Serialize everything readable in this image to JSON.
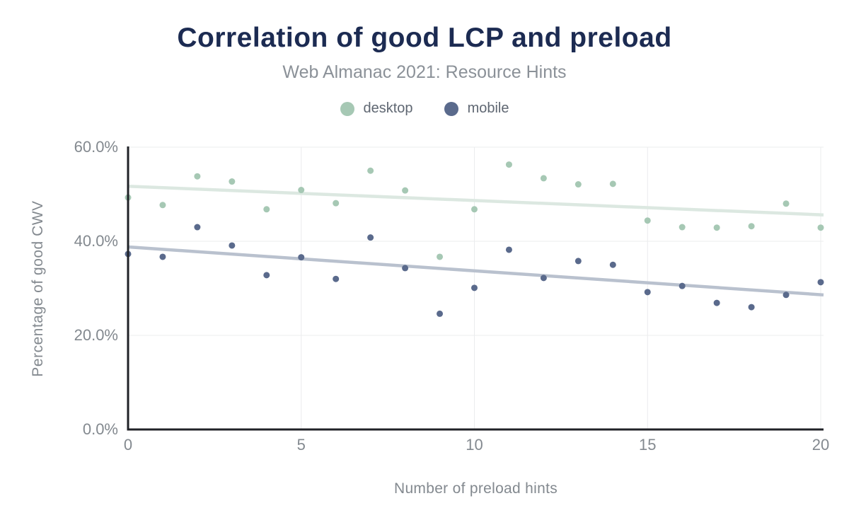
{
  "header": {
    "title": "Correlation of good LCP and preload",
    "subtitle": "Web Almanac 2021: Resource Hints"
  },
  "colors": {
    "title": "#1c2b52",
    "subtitle": "#8b9198",
    "legend_text": "#5f6772",
    "tick_label": "#83898f",
    "axis_title": "#83898f",
    "axis_line": "#202227",
    "grid": "#ebecee",
    "background": "#ffffff"
  },
  "chart_data": {
    "type": "scatter",
    "title": "Correlation of good LCP and preload",
    "subtitle": "Web Almanac 2021: Resource Hints",
    "xlabel": "Number of preload hints",
    "ylabel": "Percentage of good CWV",
    "xlim": [
      0,
      20
    ],
    "ylim": [
      0,
      60
    ],
    "grid": true,
    "legend_position": "top",
    "xticks": {
      "values": [
        0,
        5,
        10,
        15,
        20
      ],
      "labels": [
        "0",
        "5",
        "10",
        "15",
        "20"
      ]
    },
    "yticks": {
      "values": [
        0,
        20,
        40,
        60
      ],
      "labels": [
        "0.0%",
        "20.0%",
        "40.0%",
        "60.0%"
      ]
    },
    "x": [
      0,
      1,
      2,
      3,
      4,
      5,
      6,
      7,
      8,
      9,
      10,
      11,
      12,
      13,
      14,
      15,
      16,
      17,
      18,
      19,
      20
    ],
    "series": [
      {
        "name": "desktop",
        "color": "#a6c8b4",
        "trend_color": "#dce8e1",
        "values": [
          49.3,
          47.7,
          53.8,
          52.7,
          46.8,
          50.9,
          48.1,
          55.0,
          50.8,
          36.7,
          46.8,
          56.3,
          53.4,
          52.1,
          52.2,
          44.4,
          43.0,
          42.9,
          43.2,
          48.0,
          42.9
        ],
        "trend": {
          "x": [
            0,
            20
          ],
          "y": [
            51.7,
            45.6
          ]
        }
      },
      {
        "name": "mobile",
        "color": "#5a6a8c",
        "trend_color": "#b9c1ce",
        "values": [
          37.3,
          36.7,
          43.0,
          39.1,
          32.8,
          36.6,
          32.0,
          40.8,
          34.3,
          24.6,
          30.1,
          38.2,
          32.2,
          35.8,
          35.0,
          29.2,
          30.5,
          26.9,
          26.0,
          28.6,
          31.3
        ],
        "trend": {
          "x": [
            0,
            20
          ],
          "y": [
            38.8,
            28.6
          ]
        }
      }
    ]
  }
}
